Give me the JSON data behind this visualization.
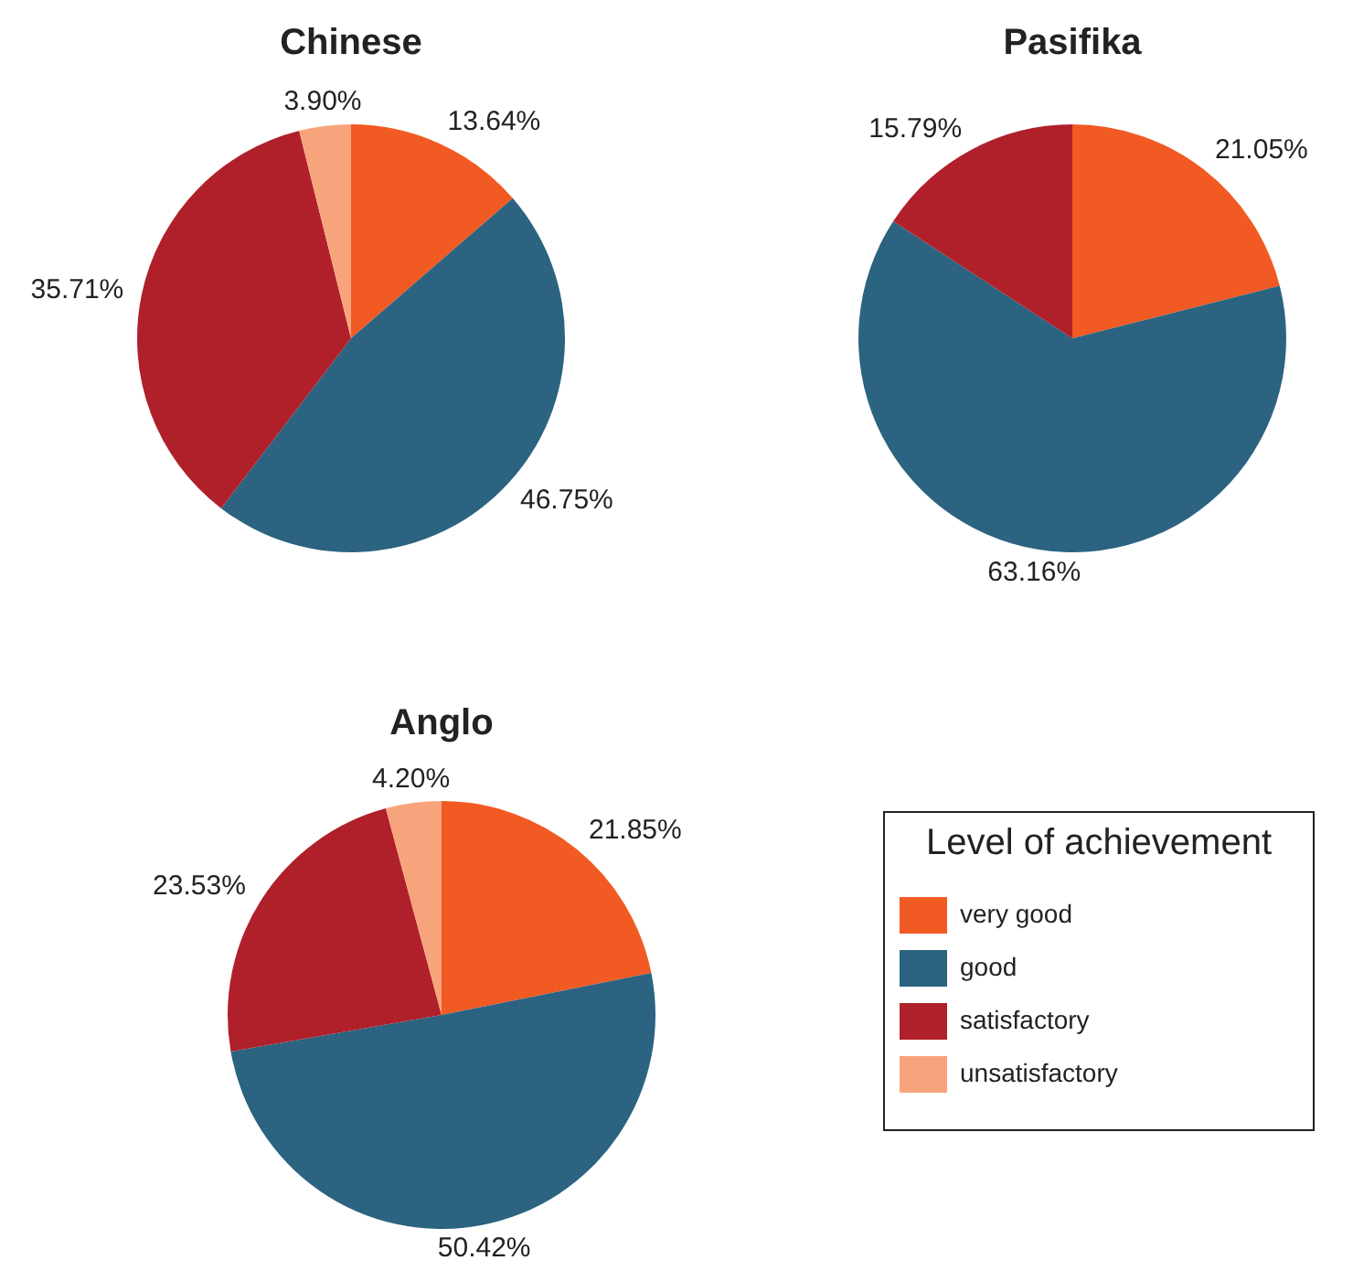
{
  "chart_data": [
    {
      "type": "pie",
      "title": "Chinese",
      "categories": [
        null,
        null,
        null,
        null
      ],
      "values": [
        13.64,
        46.75,
        35.71,
        3.9
      ],
      "value_labels": [
        "13.64%",
        "46.75%",
        "35.71%",
        "3.90%"
      ],
      "colors": [
        "#f15a22",
        "#2b6380",
        "#b0202a",
        "#f7a47c"
      ],
      "legend": false
    },
    {
      "type": "pie",
      "title": "Pasifika",
      "categories": [
        null,
        null,
        null
      ],
      "values": [
        21.05,
        63.16,
        15.79
      ],
      "value_labels": [
        "21.05%",
        "63.16%",
        "15.79%"
      ],
      "colors": [
        "#f15a22",
        "#2b6380",
        "#b0202a"
      ],
      "legend": false
    },
    {
      "type": "pie",
      "title": "Anglo",
      "categories": [
        "very good",
        "good",
        "satisfactory",
        "unsatisfactory"
      ],
      "values": [
        21.85,
        50.42,
        23.53,
        4.2
      ],
      "value_labels": [
        "21.85%",
        "50.42%",
        "23.53%",
        "4.20%"
      ],
      "colors": [
        "#f15a22",
        "#2b6380",
        "#b0202a",
        "#f7a47c"
      ],
      "legend": "right",
      "legend_title": "Level of achievement"
    }
  ]
}
